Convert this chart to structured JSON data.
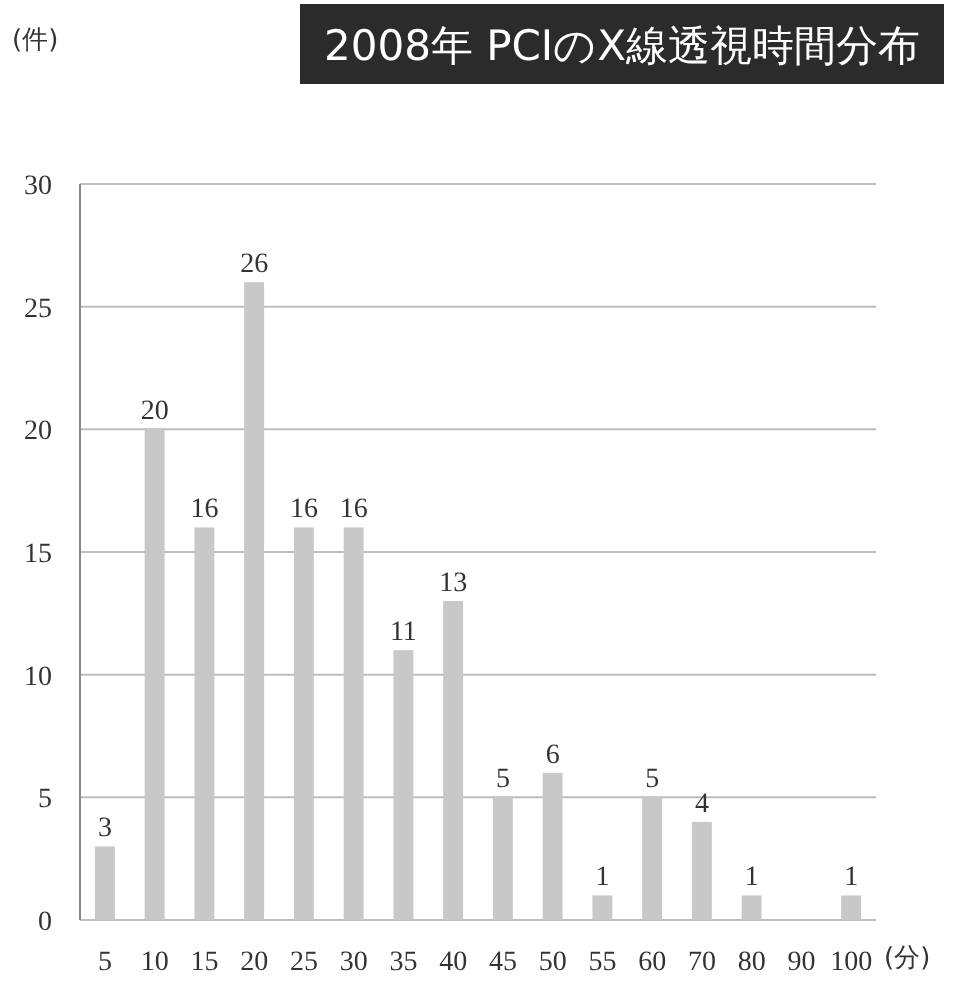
{
  "chart_data": {
    "type": "bar",
    "title": "2008年 PCIのX線透視時間分布",
    "ylabel": "(件)",
    "xlabel": "(分)",
    "categories": [
      "5",
      "10",
      "15",
      "20",
      "25",
      "30",
      "35",
      "40",
      "45",
      "50",
      "55",
      "60",
      "70",
      "80",
      "90",
      "100"
    ],
    "values": [
      3,
      20,
      16,
      26,
      16,
      16,
      11,
      13,
      5,
      6,
      1,
      5,
      4,
      1,
      0,
      1
    ],
    "value_labels": [
      "3",
      "20",
      "16",
      "26",
      "16",
      "16",
      "11",
      "13",
      "5",
      "6",
      "1",
      "5",
      "4",
      "1",
      null,
      "1"
    ],
    "color": "#c8c8c8",
    "ylim": [
      0,
      30
    ],
    "yticks": [
      0,
      5,
      10,
      15,
      20,
      25,
      30
    ],
    "grid": "y"
  }
}
